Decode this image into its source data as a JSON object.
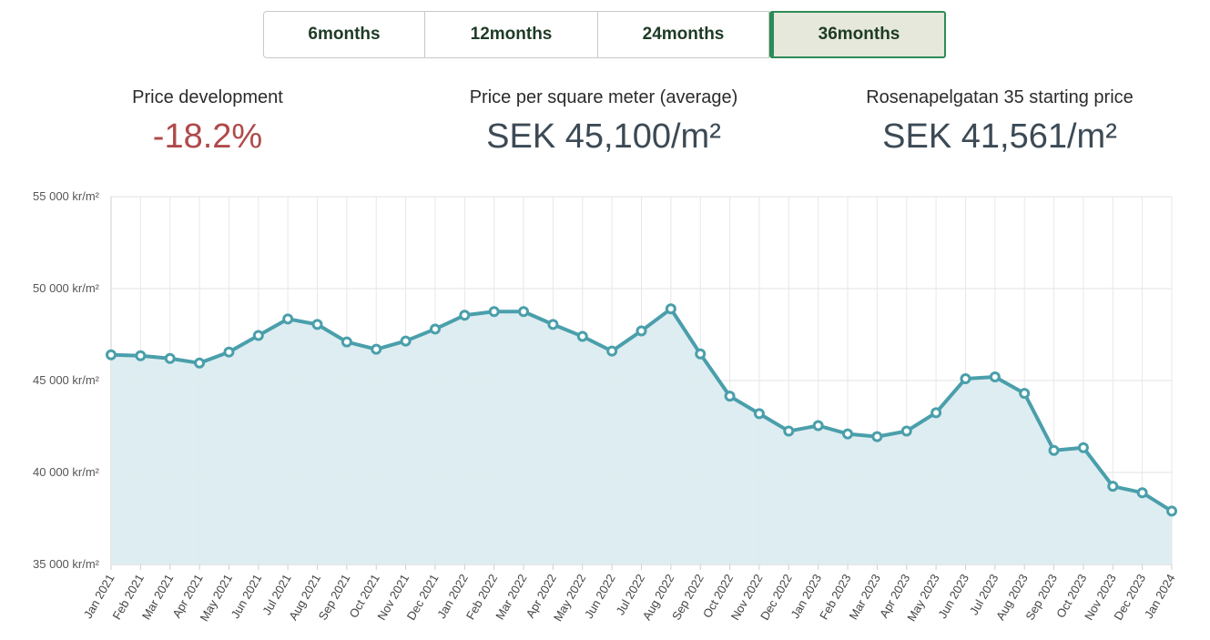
{
  "tabs": [
    {
      "label": "6months",
      "active": false
    },
    {
      "label": "12months",
      "active": false
    },
    {
      "label": "24months",
      "active": false
    },
    {
      "label": "36months",
      "active": true
    }
  ],
  "stats": {
    "development": {
      "label": "Price development",
      "value": "-18.2%"
    },
    "average": {
      "label": "Price per square meter (average)",
      "value": "SEK 45,100/m²"
    },
    "starting": {
      "label": "Rosenapelgatan 35 starting price",
      "value": "SEK 41,561/m²"
    }
  },
  "colors": {
    "line": "#4a9fab",
    "fill": "#dcecf0",
    "negative": "#b04a4a",
    "tab_active_border": "#2e8b57"
  },
  "chart_data": {
    "type": "area",
    "x": [
      "Jan 2021",
      "Feb 2021",
      "Mar 2021",
      "Apr 2021",
      "May 2021",
      "Jun 2021",
      "Jul 2021",
      "Aug 2021",
      "Sep 2021",
      "Oct 2021",
      "Nov 2021",
      "Dec 2021",
      "Jan 2022",
      "Feb 2022",
      "Mar 2022",
      "Apr 2022",
      "May 2022",
      "Jun 2022",
      "Jul 2022",
      "Aug 2022",
      "Sep 2022",
      "Oct 2022",
      "Nov 2022",
      "Dec 2022",
      "Jan 2023",
      "Feb 2023",
      "Mar 2023",
      "Apr 2023",
      "May 2023",
      "Jun 2023",
      "Jul 2023",
      "Aug 2023",
      "Sep 2023",
      "Oct 2023",
      "Nov 2023",
      "Dec 2023",
      "Jan 2024"
    ],
    "values": [
      46400,
      46350,
      46200,
      45950,
      46550,
      47450,
      48350,
      48050,
      47100,
      46700,
      47150,
      47800,
      48550,
      48750,
      48750,
      48050,
      47400,
      46600,
      47700,
      48900,
      46450,
      44150,
      43200,
      42250,
      42550,
      42100,
      41950,
      42250,
      43250,
      45100,
      45200,
      44300,
      41200,
      41350,
      39250,
      38900,
      37900
    ],
    "ylim": [
      35000,
      55000
    ],
    "yticks": [
      35000,
      40000,
      45000,
      50000,
      55000
    ],
    "ytick_labels": [
      "35 000 kr/m²",
      "40 000 kr/m²",
      "45 000 kr/m²",
      "50 000 kr/m²",
      "55 000 kr/m²"
    ],
    "grid": true,
    "xlabel": "",
    "ylabel": ""
  }
}
